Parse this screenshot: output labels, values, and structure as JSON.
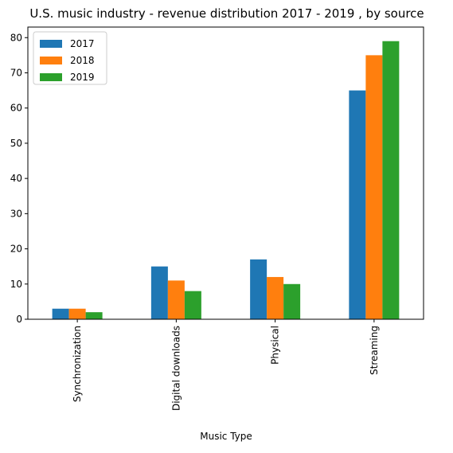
{
  "chart_data": {
    "type": "bar",
    "title": "U.S. music industry - revenue distribution 2017 - 2019 , by source",
    "xlabel": "Music Type",
    "ylabel": "",
    "categories": [
      "Synchronization",
      "Digital downloads",
      "Physical",
      "Streaming"
    ],
    "series": [
      {
        "name": "2017",
        "color": "#1f77b4",
        "values": [
          3,
          15,
          17,
          65
        ]
      },
      {
        "name": "2018",
        "color": "#ff7f0e",
        "values": [
          3,
          11,
          12,
          75
        ]
      },
      {
        "name": "2019",
        "color": "#2ca02c",
        "values": [
          2,
          8,
          10,
          79
        ]
      }
    ],
    "ylim": [
      0,
      83
    ],
    "yticks": [
      0,
      10,
      20,
      30,
      40,
      50,
      60,
      70,
      80
    ],
    "grid": false,
    "legend_position": "top-left"
  }
}
